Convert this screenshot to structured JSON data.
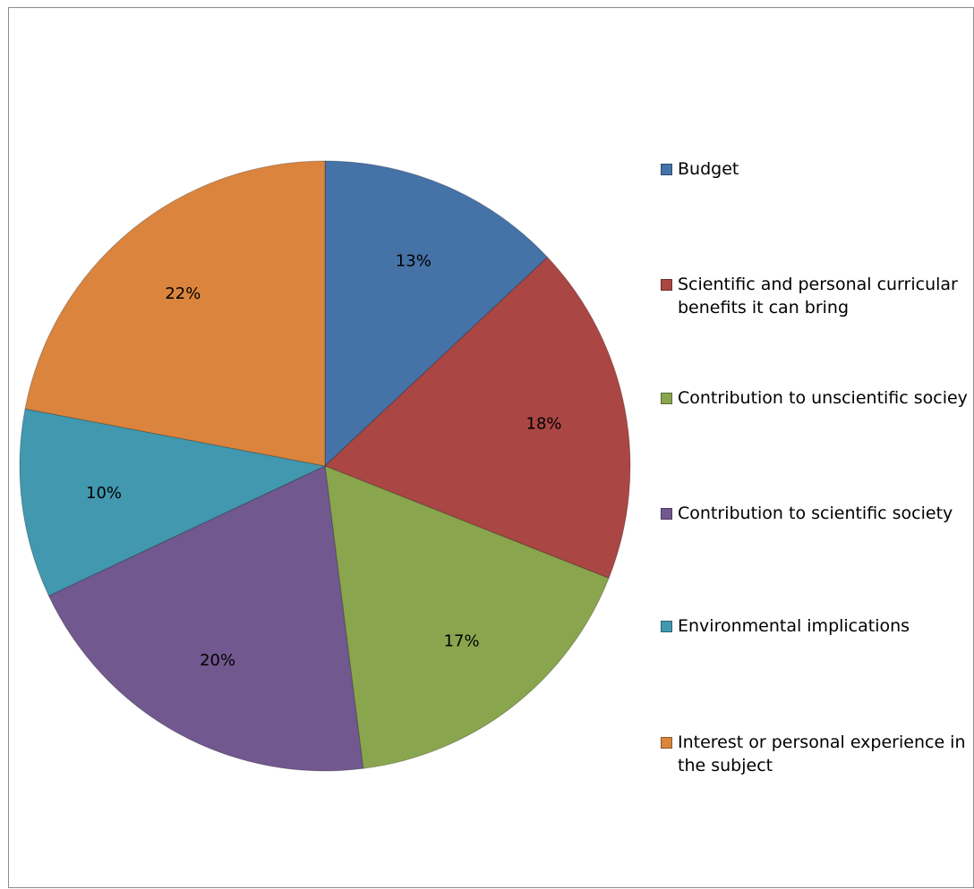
{
  "chart_data": {
    "type": "pie",
    "title": "",
    "legend_position": "right",
    "slices": [
      {
        "label": "Budget",
        "value": 13,
        "display": "13%",
        "color": "#4572A7"
      },
      {
        "label": "Scientific and personal curricular benefits it can bring",
        "value": 18,
        "display": "18%",
        "color": "#AA4643"
      },
      {
        "label": "Contribution to unscientific sociey",
        "value": 17,
        "display": "17%",
        "color": "#89A54E"
      },
      {
        "label": "Contribution to scientific society",
        "value": 20,
        "display": "20%",
        "color": "#71588F"
      },
      {
        "label": "Environmental implications",
        "value": 10,
        "display": "10%",
        "color": "#4198AF"
      },
      {
        "label": "Interest or personal experience in the subject",
        "value": 22,
        "display": "22%",
        "color": "#DB843D"
      }
    ]
  }
}
